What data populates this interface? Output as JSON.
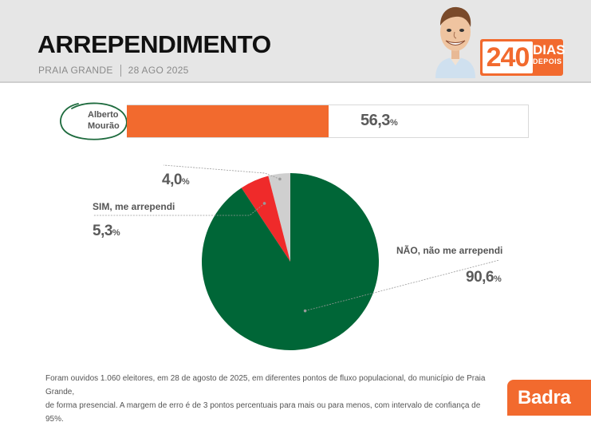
{
  "header": {
    "title": "ARREPENDIMENTO",
    "location": "PRAIA GRANDE",
    "date": "28 AGO 2025",
    "badge_number": "240",
    "badge_word": "DIAS",
    "badge_sub": "DEPOIS"
  },
  "colors": {
    "accent": "#f26a2e",
    "no_regret": "#006637",
    "yes_regret": "#ef2a2a",
    "other": "#cfcfcf"
  },
  "bar": {
    "candidate_line1": "Alberto",
    "candidate_line2": "Mourão",
    "value": 56.3,
    "value_main": "56,3",
    "value_unit": "%"
  },
  "chart_data": {
    "type": "pie",
    "title": "ARREPENDIMENTO",
    "slices": [
      {
        "name": "other",
        "label": "",
        "value": 4.0,
        "value_text": "4,0",
        "color": "#cfcfcf"
      },
      {
        "name": "yes",
        "label": "SIM, me arrependi",
        "value": 5.3,
        "value_text": "5,3",
        "color": "#ef2a2a"
      },
      {
        "name": "no",
        "label": "NÃO, não me arrependi",
        "value": 90.6,
        "value_text": "90,6",
        "color": "#006637"
      }
    ],
    "unit": "%"
  },
  "footnote": {
    "line1": "Foram ouvidos 1.060 eleitores, em 28 de agosto de 2025, em diferentes pontos de fluxo populacional, do município de Praia Grande,",
    "line2": "de forma presencial. A margem de erro é de 3 pontos percentuais para mais ou para menos, com intervalo de confiança de 95%."
  },
  "brand": "Badra"
}
